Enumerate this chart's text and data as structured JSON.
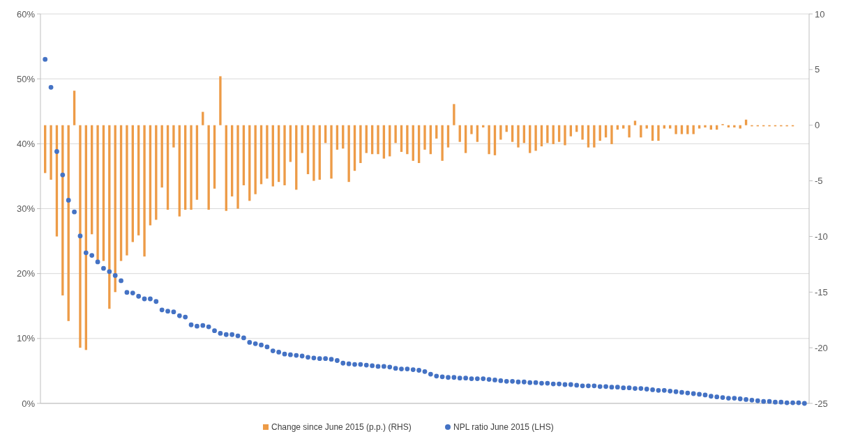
{
  "chart_data": {
    "type": "bar",
    "categories": [
      null,
      null,
      null,
      null,
      null,
      null,
      null,
      null,
      null,
      null,
      null,
      null,
      null,
      null,
      null,
      null,
      null,
      null,
      null,
      null,
      null,
      null,
      null,
      null,
      null,
      null,
      null,
      null,
      null,
      null,
      null,
      null,
      null,
      null,
      null,
      null,
      null,
      null,
      null,
      null,
      null,
      null,
      null,
      null,
      null,
      null,
      null,
      null,
      null,
      null,
      null,
      null,
      null,
      null,
      null,
      null,
      null,
      null,
      null,
      null,
      null,
      null,
      null,
      null,
      null,
      null,
      null,
      null,
      null,
      null,
      null,
      null,
      null,
      null,
      null,
      null,
      null,
      null,
      null,
      null,
      null,
      null,
      null,
      null,
      null,
      null,
      null,
      null,
      null,
      null,
      null,
      null,
      null,
      null,
      null,
      null,
      null,
      null,
      null,
      null,
      null,
      null,
      null,
      null,
      null,
      null,
      null,
      null,
      null,
      null,
      null,
      null,
      null,
      null,
      null,
      null,
      null,
      null,
      null,
      null,
      null,
      null,
      null,
      null,
      null,
      null,
      null,
      null,
      null,
      null,
      null
    ],
    "series": [
      {
        "name": "Change since June 2015 (p.p.) (RHS)",
        "axis": "y2",
        "color": "#ed9b47",
        "values": [
          -4.3,
          -4.9,
          -10.0,
          -15.3,
          -17.6,
          3.1,
          -20.0,
          -20.2,
          -9.8,
          -12.1,
          -12.2,
          -16.5,
          -15.0,
          -12.2,
          -11.7,
          -10.5,
          -9.9,
          -11.8,
          -9.0,
          -8.5,
          -5.6,
          -7.6,
          -2.0,
          -8.2,
          -7.6,
          -7.6,
          -6.7,
          1.2,
          -7.6,
          -5.7,
          4.4,
          -7.7,
          -6.4,
          -7.5,
          -5.4,
          -6.8,
          -6.2,
          -5.3,
          -4.8,
          -5.5,
          -5.1,
          -5.4,
          -3.3,
          -5.8,
          -2.5,
          -4.4,
          -5.0,
          -4.9,
          -1.6,
          -4.8,
          -2.2,
          -2.1,
          -5.1,
          -4.1,
          -3.4,
          -2.5,
          -2.6,
          -2.6,
          -3.0,
          -2.8,
          -1.6,
          -2.4,
          -2.6,
          -3.2,
          -3.4,
          -2.2,
          -2.6,
          -1.2,
          -3.2,
          -2.0,
          1.9,
          -1.5,
          -2.5,
          -0.8,
          -1.5,
          -0.2,
          -2.6,
          -2.7,
          -1.3,
          -0.6,
          -1.5,
          -2.0,
          -1.6,
          -2.5,
          -2.3,
          -1.9,
          -1.6,
          -1.7,
          -1.5,
          -1.8,
          -1.0,
          -0.6,
          -1.3,
          -2.0,
          -2.0,
          -1.4,
          -1.1,
          -1.7,
          -0.4,
          -0.3,
          -1.1,
          0.4,
          -1.1,
          -0.3,
          -1.4,
          -1.4,
          -0.3,
          -0.3,
          -0.8,
          -0.8,
          -0.8,
          -0.8,
          -0.3,
          -0.2,
          -0.4,
          -0.4,
          0.1,
          -0.2,
          -0.2,
          -0.3,
          0.5,
          -0.1,
          -0.1,
          -0.1,
          -0.1,
          -0.1,
          -0.1,
          -0.1,
          -0.1,
          0,
          0
        ]
      },
      {
        "name": "NPL ratio June 2015 (LHS)",
        "type": "scatter",
        "color": "#4472c4",
        "values": [
          53.0,
          48.7,
          38.8,
          35.2,
          31.3,
          29.5,
          25.8,
          23.2,
          22.8,
          21.8,
          20.8,
          20.3,
          19.7,
          18.9,
          17.1,
          17.0,
          16.5,
          16.1,
          16.1,
          15.7,
          14.4,
          14.2,
          14.1,
          13.5,
          13.3,
          12.1,
          11.9,
          12.0,
          11.8,
          11.2,
          10.8,
          10.6,
          10.6,
          10.4,
          10.1,
          9.4,
          9.2,
          9.0,
          8.7,
          8.1,
          7.9,
          7.6,
          7.5,
          7.4,
          7.3,
          7.1,
          7.0,
          6.9,
          6.9,
          6.8,
          6.6,
          6.2,
          6.1,
          6.0,
          6.0,
          5.9,
          5.8,
          5.7,
          5.7,
          5.6,
          5.4,
          5.3,
          5.3,
          5.2,
          5.1,
          4.9,
          4.5,
          4.2,
          4.1,
          4.0,
          4.0,
          3.9,
          3.9,
          3.8,
          3.8,
          3.8,
          3.7,
          3.6,
          3.5,
          3.4,
          3.4,
          3.3,
          3.3,
          3.2,
          3.2,
          3.1,
          3.1,
          3.0,
          3.0,
          2.9,
          2.9,
          2.8,
          2.7,
          2.7,
          2.7,
          2.6,
          2.6,
          2.5,
          2.5,
          2.4,
          2.4,
          2.3,
          2.3,
          2.2,
          2.1,
          2.0,
          2.0,
          1.9,
          1.8,
          1.7,
          1.6,
          1.5,
          1.4,
          1.3,
          1.1,
          1.0,
          0.9,
          0.8,
          0.8,
          0.7,
          0.6,
          0.5,
          0.4,
          0.3,
          0.3,
          0.2,
          0.2,
          0.1,
          0.1,
          0.1,
          0.0
        ]
      }
    ],
    "ylim": [
      0,
      60
    ],
    "yticks": [
      {
        "value": 0,
        "label": "0%"
      },
      {
        "value": 10,
        "label": "10%"
      },
      {
        "value": 20,
        "label": "20%"
      },
      {
        "value": 30,
        "label": "30%"
      },
      {
        "value": 40,
        "label": "40%"
      },
      {
        "value": 50,
        "label": "50%"
      },
      {
        "value": 60,
        "label": "60%"
      }
    ],
    "y2lim": [
      -25,
      10
    ],
    "y2ticks": [
      -25,
      -20,
      -15,
      -10,
      -5,
      0,
      5,
      10
    ],
    "grid": "y",
    "legend": "bottom",
    "marker": "circle"
  }
}
